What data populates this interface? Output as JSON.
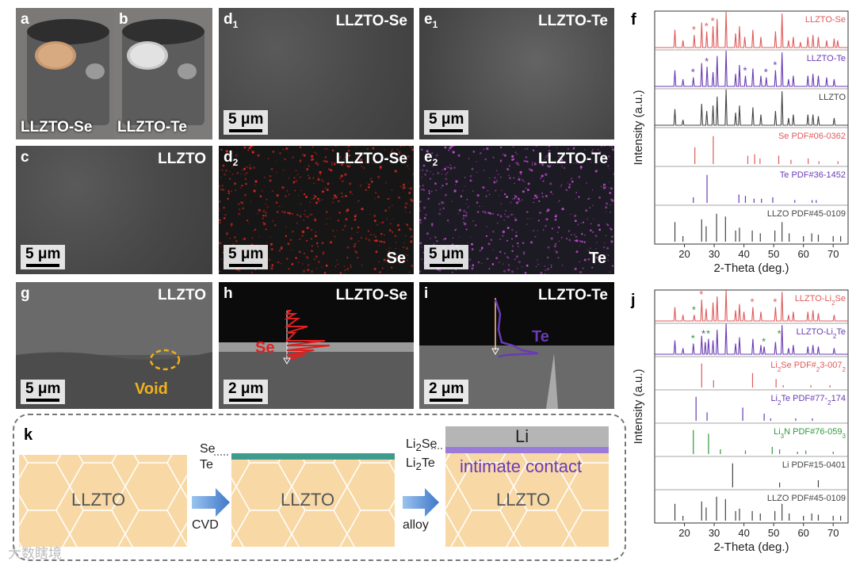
{
  "panels": {
    "a": {
      "label": "a",
      "caption": "LLZTO-Se"
    },
    "b": {
      "label": "b",
      "caption": "LLZTO-Te"
    },
    "c": {
      "label": "c",
      "title": "LLZTO",
      "scale": "5 μm"
    },
    "d1": {
      "label": "d",
      "sub": "1",
      "title": "LLZTO-Se",
      "scale": "5 μm"
    },
    "d2": {
      "label": "d",
      "sub": "2",
      "title": "LLZTO-Se",
      "scale": "5 μm",
      "element": "Se"
    },
    "e1": {
      "label": "e",
      "sub": "1",
      "title": "LLZTO-Te",
      "scale": "5 μm"
    },
    "e2": {
      "label": "e",
      "sub": "2",
      "title": "LLZTO-Te",
      "scale": "5 μm",
      "element": "Te"
    },
    "g": {
      "label": "g",
      "title": "LLZTO",
      "scale": "5 μm",
      "annotation": "Void"
    },
    "h": {
      "label": "h",
      "title": "LLZTO-Se",
      "scale": "2 μm",
      "element": "Se"
    },
    "i": {
      "label": "i",
      "title": "LLZTO-Te",
      "scale": "2 μm",
      "element": "Te"
    }
  },
  "schematic": {
    "label": "k",
    "block1": "LLZTO",
    "block2": "LLZTO",
    "block3": "LLZTO",
    "se": "Se",
    "te": "Te",
    "arrow1": "CVD",
    "arrow2": "alloy",
    "li2se": "Li2Se",
    "li2te": "Li2Te",
    "li": "Li",
    "contact": "intimate contact"
  },
  "watermark": "大数瞎境",
  "chart_data": [
    {
      "type": "line",
      "panel": "f",
      "xlabel": "2-Theta (deg.)",
      "ylabel": "Intensity (a.u.)",
      "xlim": [
        10,
        75
      ],
      "xticks": [
        20,
        30,
        40,
        50,
        60,
        70
      ],
      "colors": {
        "red": "#e05a5a",
        "purple": "#6a3bb5",
        "black": "#444444"
      },
      "series": [
        {
          "name": "LLZTO-Se",
          "color": "red",
          "kind": "pattern",
          "peaks": [
            [
              16.8,
              0.5
            ],
            [
              19.5,
              0.2
            ],
            [
              23.3,
              0.35
            ],
            [
              25.8,
              0.7
            ],
            [
              27.5,
              0.45
            ],
            [
              29.6,
              0.6
            ],
            [
              31.0,
              0.8
            ],
            [
              34.0,
              1.0
            ],
            [
              37.2,
              0.4
            ],
            [
              38.5,
              0.6
            ],
            [
              40.3,
              0.3
            ],
            [
              43.0,
              0.5
            ],
            [
              45.7,
              0.3
            ],
            [
              50.6,
              0.45
            ],
            [
              52.8,
              0.95
            ],
            [
              55.0,
              0.2
            ],
            [
              56.6,
              0.3
            ],
            [
              59.0,
              0.15
            ],
            [
              61.5,
              0.3
            ],
            [
              63.2,
              0.35
            ],
            [
              65.0,
              0.3
            ],
            [
              67.8,
              0.2
            ],
            [
              70.3,
              0.25
            ],
            [
              71.5,
              0.2
            ]
          ],
          "stars": [
            23.3,
            27.5,
            29.6
          ]
        },
        {
          "name": "LLZTO-Te",
          "color": "purple",
          "kind": "pattern",
          "peaks": [
            [
              16.8,
              0.45
            ],
            [
              19.5,
              0.2
            ],
            [
              23.0,
              0.25
            ],
            [
              25.8,
              0.65
            ],
            [
              27.6,
              0.55
            ],
            [
              29.6,
              0.4
            ],
            [
              31.0,
              0.85
            ],
            [
              34.0,
              1.0
            ],
            [
              37.2,
              0.35
            ],
            [
              38.5,
              0.6
            ],
            [
              40.5,
              0.3
            ],
            [
              43.0,
              0.5
            ],
            [
              45.7,
              0.3
            ],
            [
              47.5,
              0.25
            ],
            [
              50.6,
              0.45
            ],
            [
              52.8,
              0.95
            ],
            [
              55.0,
              0.2
            ],
            [
              56.6,
              0.3
            ],
            [
              61.5,
              0.3
            ],
            [
              63.2,
              0.35
            ],
            [
              65.0,
              0.3
            ],
            [
              67.8,
              0.25
            ],
            [
              70.3,
              0.2
            ]
          ],
          "stars": [
            23.0,
            27.6,
            40.5,
            47.5,
            50.6
          ]
        },
        {
          "name": "LLZTO",
          "color": "black",
          "kind": "pattern",
          "peaks": [
            [
              16.8,
              0.45
            ],
            [
              19.5,
              0.15
            ],
            [
              25.8,
              0.6
            ],
            [
              27.5,
              0.4
            ],
            [
              29.6,
              0.55
            ],
            [
              31.0,
              0.8
            ],
            [
              34.0,
              1.0
            ],
            [
              37.2,
              0.35
            ],
            [
              38.5,
              0.55
            ],
            [
              43.0,
              0.5
            ],
            [
              45.7,
              0.3
            ],
            [
              50.6,
              0.4
            ],
            [
              52.8,
              0.95
            ],
            [
              55.0,
              0.2
            ],
            [
              56.6,
              0.3
            ],
            [
              61.5,
              0.3
            ],
            [
              63.2,
              0.3
            ],
            [
              65.0,
              0.25
            ],
            [
              70.3,
              0.2
            ]
          ],
          "stars": []
        },
        {
          "name": "Se PDF#06-0362",
          "color": "red",
          "kind": "stick",
          "peaks": [
            [
              23.5,
              0.6
            ],
            [
              29.7,
              1.0
            ],
            [
              41.3,
              0.3
            ],
            [
              43.6,
              0.35
            ],
            [
              45.4,
              0.2
            ],
            [
              51.7,
              0.3
            ],
            [
              55.8,
              0.15
            ],
            [
              61.6,
              0.2
            ],
            [
              65.2,
              0.1
            ],
            [
              71.6,
              0.1
            ]
          ],
          "stars": []
        },
        {
          "name": "Te PDF#36-1452",
          "color": "purple",
          "kind": "stick",
          "peaks": [
            [
              23.0,
              0.2
            ],
            [
              27.6,
              1.0
            ],
            [
              38.3,
              0.3
            ],
            [
              40.5,
              0.25
            ],
            [
              43.4,
              0.15
            ],
            [
              45.9,
              0.15
            ],
            [
              49.7,
              0.2
            ],
            [
              57.1,
              0.1
            ],
            [
              62.9,
              0.1
            ],
            [
              64.3,
              0.1
            ]
          ],
          "stars": []
        },
        {
          "name": "LLZO PDF#45-0109",
          "color": "black",
          "kind": "stick",
          "peaks": [
            [
              16.8,
              0.7
            ],
            [
              19.5,
              0.2
            ],
            [
              25.8,
              0.8
            ],
            [
              27.3,
              0.55
            ],
            [
              30.8,
              1.0
            ],
            [
              33.8,
              0.9
            ],
            [
              37.2,
              0.4
            ],
            [
              38.5,
              0.5
            ],
            [
              42.8,
              0.4
            ],
            [
              45.5,
              0.3
            ],
            [
              50.4,
              0.4
            ],
            [
              52.8,
              0.7
            ],
            [
              55.2,
              0.3
            ],
            [
              60.0,
              0.2
            ],
            [
              62.8,
              0.3
            ],
            [
              65.0,
              0.25
            ],
            [
              70.0,
              0.2
            ],
            [
              72.5,
              0.2
            ]
          ],
          "stars": []
        }
      ]
    },
    {
      "type": "line",
      "panel": "j",
      "xlabel": "2-Theta (deg.)",
      "ylabel": "Intensity (a.u.)",
      "xlim": [
        10,
        75
      ],
      "xticks": [
        20,
        30,
        40,
        50,
        60,
        70
      ],
      "colors": {
        "red": "#e05a5a",
        "purple": "#6a3bb5",
        "black": "#444444",
        "green": "#2f9a3a"
      },
      "series": [
        {
          "name": "LLZTO-Li2Se",
          "color": "red",
          "kind": "pattern",
          "peaks": [
            [
              16.8,
              0.45
            ],
            [
              19.5,
              0.2
            ],
            [
              23.3,
              0.2
            ],
            [
              25.8,
              0.7
            ],
            [
              27.3,
              0.4
            ],
            [
              29.6,
              0.6
            ],
            [
              31.0,
              0.8
            ],
            [
              34.0,
              1.0
            ],
            [
              37.2,
              0.35
            ],
            [
              38.5,
              0.55
            ],
            [
              40.0,
              0.3
            ],
            [
              43.0,
              0.45
            ],
            [
              45.7,
              0.3
            ],
            [
              50.6,
              0.45
            ],
            [
              52.8,
              0.95
            ],
            [
              55.0,
              0.2
            ],
            [
              56.6,
              0.3
            ],
            [
              61.5,
              0.3
            ],
            [
              63.2,
              0.35
            ],
            [
              65.0,
              0.25
            ],
            [
              70.3,
              0.2
            ]
          ],
          "stars": [
            23.3,
            25.8,
            42.9,
            50.6
          ],
          "star_colors": [
            "green",
            "red",
            "red",
            "red"
          ]
        },
        {
          "name": "LLZTO-Li2Te",
          "color": "purple",
          "kind": "pattern",
          "peaks": [
            [
              16.8,
              0.45
            ],
            [
              19.5,
              0.2
            ],
            [
              23.0,
              0.35
            ],
            [
              25.8,
              0.6
            ],
            [
              27.0,
              0.4
            ],
            [
              28.1,
              0.5
            ],
            [
              29.6,
              0.45
            ],
            [
              31.0,
              0.8
            ],
            [
              34.0,
              1.0
            ],
            [
              37.2,
              0.35
            ],
            [
              38.5,
              0.55
            ],
            [
              43.0,
              0.5
            ],
            [
              45.7,
              0.3
            ],
            [
              46.8,
              0.25
            ],
            [
              50.6,
              0.4
            ],
            [
              52.8,
              0.95
            ],
            [
              55.0,
              0.2
            ],
            [
              56.6,
              0.3
            ],
            [
              61.5,
              0.25
            ],
            [
              63.2,
              0.3
            ],
            [
              65.0,
              0.25
            ],
            [
              70.3,
              0.2
            ]
          ],
          "stars": [
            23.0,
            26.5,
            28.1,
            46.8,
            52.0
          ],
          "star_colors": [
            "green",
            "purple",
            "green",
            "green",
            "green"
          ]
        },
        {
          "name": "Li2Se PDF#23-0072",
          "color": "red",
          "kind": "stick",
          "peaks": [
            [
              25.8,
              1.0
            ],
            [
              29.8,
              0.3
            ],
            [
              42.9,
              0.6
            ],
            [
              50.8,
              0.35
            ],
            [
              53.2,
              0.1
            ],
            [
              62.5,
              0.1
            ],
            [
              68.9,
              0.1
            ]
          ],
          "stars": []
        },
        {
          "name": "Li2Te PDF#77-2174",
          "color": "purple",
          "kind": "stick",
          "peaks": [
            [
              23.9,
              1.0
            ],
            [
              27.6,
              0.35
            ],
            [
              39.6,
              0.55
            ],
            [
              46.8,
              0.3
            ],
            [
              49.0,
              0.1
            ],
            [
              57.4,
              0.1
            ],
            [
              63.0,
              0.1
            ]
          ],
          "stars": []
        },
        {
          "name": "Li3N PDF#76-0593",
          "color": "green",
          "kind": "stick",
          "peaks": [
            [
              23.0,
              1.0
            ],
            [
              28.1,
              0.85
            ],
            [
              32.1,
              0.2
            ],
            [
              40.5,
              0.15
            ],
            [
              49.5,
              0.3
            ],
            [
              52.0,
              0.2
            ],
            [
              58.0,
              0.1
            ],
            [
              60.8,
              0.15
            ],
            [
              70.0,
              0.1
            ]
          ],
          "stars": []
        },
        {
          "name": "Li PDF#15-0401",
          "color": "black",
          "kind": "stick",
          "peaks": [
            [
              36.2,
              1.0
            ],
            [
              52.0,
              0.2
            ],
            [
              65.0,
              0.3
            ]
          ],
          "stars": []
        },
        {
          "name": "LLZO PDF#45-0109",
          "color": "black",
          "kind": "stick",
          "peaks": [
            [
              16.8,
              0.7
            ],
            [
              19.5,
              0.2
            ],
            [
              25.8,
              0.8
            ],
            [
              27.3,
              0.55
            ],
            [
              30.8,
              1.0
            ],
            [
              33.8,
              0.9
            ],
            [
              37.2,
              0.4
            ],
            [
              38.5,
              0.5
            ],
            [
              42.8,
              0.4
            ],
            [
              45.5,
              0.3
            ],
            [
              50.4,
              0.4
            ],
            [
              52.8,
              0.7
            ],
            [
              55.2,
              0.3
            ],
            [
              60.0,
              0.2
            ],
            [
              62.8,
              0.3
            ],
            [
              65.0,
              0.25
            ],
            [
              70.0,
              0.2
            ],
            [
              72.5,
              0.2
            ]
          ],
          "stars": []
        }
      ]
    }
  ]
}
